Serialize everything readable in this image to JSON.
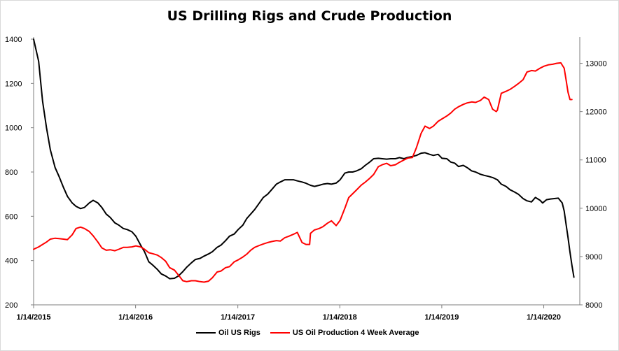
{
  "chart_data": {
    "type": "line",
    "title": "US Drilling Rigs and Crude Production",
    "x_tick_labels": [
      "1/14/2015",
      "1/14/2016",
      "1/14/2017",
      "1/14/2018",
      "1/14/2019",
      "1/14/2020"
    ],
    "x_range": [
      "2015-01-14",
      "2020-05-22"
    ],
    "y_left": {
      "range": [
        200,
        1400
      ],
      "ticks": [
        200,
        400,
        600,
        800,
        1000,
        1200,
        1400
      ]
    },
    "y_right": {
      "range": [
        8000,
        13500
      ],
      "ticks": [
        8000,
        9000,
        10000,
        11000,
        12000,
        13000
      ]
    },
    "grid": false,
    "legend_position": "bottom",
    "series": [
      {
        "name": "Oil US Rigs",
        "axis": "left",
        "color": "#000000",
        "points": [
          [
            "2015-01-14",
            1400
          ],
          [
            "2015-02-01",
            1300
          ],
          [
            "2015-02-15",
            1120
          ],
          [
            "2015-03-01",
            1000
          ],
          [
            "2015-03-15",
            900
          ],
          [
            "2015-04-01",
            820
          ],
          [
            "2015-04-15",
            780
          ],
          [
            "2015-05-01",
            730
          ],
          [
            "2015-05-15",
            690
          ],
          [
            "2015-06-01",
            660
          ],
          [
            "2015-06-15",
            645
          ],
          [
            "2015-07-01",
            635
          ],
          [
            "2015-07-15",
            640
          ],
          [
            "2015-08-01",
            660
          ],
          [
            "2015-08-15",
            672
          ],
          [
            "2015-09-01",
            660
          ],
          [
            "2015-09-15",
            640
          ],
          [
            "2015-10-01",
            610
          ],
          [
            "2015-10-15",
            595
          ],
          [
            "2015-11-01",
            570
          ],
          [
            "2015-11-15",
            560
          ],
          [
            "2015-12-01",
            545
          ],
          [
            "2015-12-15",
            540
          ],
          [
            "2016-01-01",
            530
          ],
          [
            "2016-01-15",
            510
          ],
          [
            "2016-02-01",
            470
          ],
          [
            "2016-02-15",
            440
          ],
          [
            "2016-03-01",
            395
          ],
          [
            "2016-03-15",
            380
          ],
          [
            "2016-04-01",
            360
          ],
          [
            "2016-04-15",
            340
          ],
          [
            "2016-05-01",
            330
          ],
          [
            "2016-05-15",
            318
          ],
          [
            "2016-06-01",
            320
          ],
          [
            "2016-06-15",
            330
          ],
          [
            "2016-07-01",
            350
          ],
          [
            "2016-07-15",
            370
          ],
          [
            "2016-08-01",
            390
          ],
          [
            "2016-08-15",
            405
          ],
          [
            "2016-09-01",
            410
          ],
          [
            "2016-09-15",
            420
          ],
          [
            "2016-10-01",
            430
          ],
          [
            "2016-10-15",
            440
          ],
          [
            "2016-11-01",
            460
          ],
          [
            "2016-11-15",
            470
          ],
          [
            "2016-12-01",
            490
          ],
          [
            "2016-12-15",
            510
          ],
          [
            "2017-01-01",
            520
          ],
          [
            "2017-01-15",
            540
          ],
          [
            "2017-02-01",
            560
          ],
          [
            "2017-02-15",
            590
          ],
          [
            "2017-03-01",
            610
          ],
          [
            "2017-03-15",
            630
          ],
          [
            "2017-04-01",
            660
          ],
          [
            "2017-04-15",
            685
          ],
          [
            "2017-05-01",
            700
          ],
          [
            "2017-05-15",
            720
          ],
          [
            "2017-06-01",
            745
          ],
          [
            "2017-06-15",
            755
          ],
          [
            "2017-07-01",
            765
          ],
          [
            "2017-07-15",
            765
          ],
          [
            "2017-08-01",
            765
          ],
          [
            "2017-08-15",
            760
          ],
          [
            "2017-09-01",
            755
          ],
          [
            "2017-09-15",
            749
          ],
          [
            "2017-10-01",
            740
          ],
          [
            "2017-10-15",
            735
          ],
          [
            "2017-11-01",
            740
          ],
          [
            "2017-11-15",
            745
          ],
          [
            "2017-12-01",
            748
          ],
          [
            "2017-12-15",
            745
          ],
          [
            "2018-01-01",
            750
          ],
          [
            "2018-01-15",
            765
          ],
          [
            "2018-02-01",
            795
          ],
          [
            "2018-02-15",
            800
          ],
          [
            "2018-03-01",
            800
          ],
          [
            "2018-03-15",
            805
          ],
          [
            "2018-04-01",
            815
          ],
          [
            "2018-04-15",
            830
          ],
          [
            "2018-05-01",
            845
          ],
          [
            "2018-05-15",
            860
          ],
          [
            "2018-06-01",
            862
          ],
          [
            "2018-06-15",
            860
          ],
          [
            "2018-07-01",
            858
          ],
          [
            "2018-07-15",
            860
          ],
          [
            "2018-08-01",
            860
          ],
          [
            "2018-08-15",
            865
          ],
          [
            "2018-09-01",
            860
          ],
          [
            "2018-09-15",
            866
          ],
          [
            "2018-10-01",
            870
          ],
          [
            "2018-10-15",
            875
          ],
          [
            "2018-11-01",
            885
          ],
          [
            "2018-11-15",
            887
          ],
          [
            "2018-12-01",
            880
          ],
          [
            "2018-12-15",
            875
          ],
          [
            "2019-01-01",
            880
          ],
          [
            "2019-01-15",
            862
          ],
          [
            "2019-02-01",
            860
          ],
          [
            "2019-02-15",
            845
          ],
          [
            "2019-03-01",
            840
          ],
          [
            "2019-03-15",
            825
          ],
          [
            "2019-04-01",
            830
          ],
          [
            "2019-04-15",
            820
          ],
          [
            "2019-05-01",
            805
          ],
          [
            "2019-05-15",
            800
          ],
          [
            "2019-06-01",
            790
          ],
          [
            "2019-06-15",
            785
          ],
          [
            "2019-07-01",
            780
          ],
          [
            "2019-07-15",
            775
          ],
          [
            "2019-08-01",
            765
          ],
          [
            "2019-08-15",
            745
          ],
          [
            "2019-09-01",
            735
          ],
          [
            "2019-09-15",
            720
          ],
          [
            "2019-10-01",
            710
          ],
          [
            "2019-10-15",
            700
          ],
          [
            "2019-11-01",
            680
          ],
          [
            "2019-11-15",
            670
          ],
          [
            "2019-12-01",
            665
          ],
          [
            "2019-12-15",
            685
          ],
          [
            "2020-01-01",
            672
          ],
          [
            "2020-01-10",
            660
          ],
          [
            "2020-01-24",
            675
          ],
          [
            "2020-02-07",
            678
          ],
          [
            "2020-02-21",
            680
          ],
          [
            "2020-03-06",
            682
          ],
          [
            "2020-03-20",
            660
          ],
          [
            "2020-03-27",
            624
          ],
          [
            "2020-04-03",
            562
          ],
          [
            "2020-04-10",
            504
          ],
          [
            "2020-04-17",
            438
          ],
          [
            "2020-04-24",
            378
          ],
          [
            "2020-05-01",
            325
          ]
        ]
      },
      {
        "name": "US Oil Production 4 Week Average",
        "axis": "right",
        "color": "#ff0000",
        "points": [
          [
            "2015-01-14",
            9150
          ],
          [
            "2015-02-01",
            9200
          ],
          [
            "2015-02-15",
            9250
          ],
          [
            "2015-03-01",
            9300
          ],
          [
            "2015-03-15",
            9360
          ],
          [
            "2015-04-01",
            9380
          ],
          [
            "2015-04-15",
            9370
          ],
          [
            "2015-05-01",
            9360
          ],
          [
            "2015-05-15",
            9350
          ],
          [
            "2015-06-01",
            9450
          ],
          [
            "2015-06-15",
            9580
          ],
          [
            "2015-07-01",
            9610
          ],
          [
            "2015-07-15",
            9580
          ],
          [
            "2015-08-01",
            9520
          ],
          [
            "2015-08-15",
            9430
          ],
          [
            "2015-09-01",
            9300
          ],
          [
            "2015-09-15",
            9180
          ],
          [
            "2015-10-01",
            9130
          ],
          [
            "2015-10-15",
            9140
          ],
          [
            "2015-11-01",
            9120
          ],
          [
            "2015-11-15",
            9150
          ],
          [
            "2015-12-01",
            9190
          ],
          [
            "2015-12-15",
            9190
          ],
          [
            "2016-01-01",
            9200
          ],
          [
            "2016-01-15",
            9220
          ],
          [
            "2016-02-01",
            9200
          ],
          [
            "2016-02-15",
            9150
          ],
          [
            "2016-03-01",
            9080
          ],
          [
            "2016-03-15",
            9060
          ],
          [
            "2016-04-01",
            9030
          ],
          [
            "2016-04-15",
            8980
          ],
          [
            "2016-05-01",
            8900
          ],
          [
            "2016-05-15",
            8770
          ],
          [
            "2016-06-01",
            8720
          ],
          [
            "2016-06-15",
            8620
          ],
          [
            "2016-07-01",
            8500
          ],
          [
            "2016-07-15",
            8480
          ],
          [
            "2016-08-01",
            8500
          ],
          [
            "2016-08-15",
            8500
          ],
          [
            "2016-09-01",
            8480
          ],
          [
            "2016-09-15",
            8470
          ],
          [
            "2016-10-01",
            8490
          ],
          [
            "2016-10-15",
            8560
          ],
          [
            "2016-11-01",
            8680
          ],
          [
            "2016-11-15",
            8700
          ],
          [
            "2016-12-01",
            8770
          ],
          [
            "2016-12-15",
            8790
          ],
          [
            "2017-01-01",
            8890
          ],
          [
            "2017-01-15",
            8930
          ],
          [
            "2017-02-01",
            8990
          ],
          [
            "2017-02-15",
            9050
          ],
          [
            "2017-03-01",
            9130
          ],
          [
            "2017-03-15",
            9190
          ],
          [
            "2017-04-01",
            9230
          ],
          [
            "2017-04-15",
            9260
          ],
          [
            "2017-05-01",
            9290
          ],
          [
            "2017-05-15",
            9310
          ],
          [
            "2017-06-01",
            9330
          ],
          [
            "2017-06-15",
            9320
          ],
          [
            "2017-07-01",
            9390
          ],
          [
            "2017-07-15",
            9420
          ],
          [
            "2017-08-01",
            9460
          ],
          [
            "2017-08-15",
            9500
          ],
          [
            "2017-09-01",
            9290
          ],
          [
            "2017-09-15",
            9250
          ],
          [
            "2017-09-28",
            9250
          ],
          [
            "2017-10-01",
            9480
          ],
          [
            "2017-10-15",
            9550
          ],
          [
            "2017-11-01",
            9580
          ],
          [
            "2017-11-15",
            9620
          ],
          [
            "2017-12-01",
            9690
          ],
          [
            "2017-12-15",
            9740
          ],
          [
            "2018-01-01",
            9640
          ],
          [
            "2018-01-15",
            9750
          ],
          [
            "2018-02-01",
            10000
          ],
          [
            "2018-02-15",
            10220
          ],
          [
            "2018-03-01",
            10300
          ],
          [
            "2018-03-15",
            10380
          ],
          [
            "2018-04-01",
            10480
          ],
          [
            "2018-04-15",
            10540
          ],
          [
            "2018-05-01",
            10620
          ],
          [
            "2018-05-15",
            10700
          ],
          [
            "2018-06-01",
            10860
          ],
          [
            "2018-06-15",
            10900
          ],
          [
            "2018-07-01",
            10930
          ],
          [
            "2018-07-15",
            10880
          ],
          [
            "2018-08-01",
            10900
          ],
          [
            "2018-08-15",
            10950
          ],
          [
            "2018-09-01",
            11000
          ],
          [
            "2018-09-15",
            11040
          ],
          [
            "2018-10-01",
            11050
          ],
          [
            "2018-10-15",
            11250
          ],
          [
            "2018-11-01",
            11550
          ],
          [
            "2018-11-15",
            11700
          ],
          [
            "2018-12-01",
            11650
          ],
          [
            "2018-12-15",
            11700
          ],
          [
            "2019-01-01",
            11800
          ],
          [
            "2019-01-15",
            11850
          ],
          [
            "2019-02-01",
            11910
          ],
          [
            "2019-02-15",
            11970
          ],
          [
            "2019-03-01",
            12050
          ],
          [
            "2019-03-15",
            12100
          ],
          [
            "2019-04-01",
            12150
          ],
          [
            "2019-04-15",
            12180
          ],
          [
            "2019-05-01",
            12200
          ],
          [
            "2019-05-15",
            12190
          ],
          [
            "2019-06-01",
            12230
          ],
          [
            "2019-06-15",
            12300
          ],
          [
            "2019-07-01",
            12250
          ],
          [
            "2019-07-15",
            12050
          ],
          [
            "2019-07-28",
            12000
          ],
          [
            "2019-08-01",
            12030
          ],
          [
            "2019-08-15",
            12380
          ],
          [
            "2019-09-01",
            12420
          ],
          [
            "2019-09-15",
            12460
          ],
          [
            "2019-10-01",
            12520
          ],
          [
            "2019-10-15",
            12580
          ],
          [
            "2019-11-01",
            12660
          ],
          [
            "2019-11-15",
            12820
          ],
          [
            "2019-12-01",
            12850
          ],
          [
            "2019-12-15",
            12840
          ],
          [
            "2020-01-01",
            12900
          ],
          [
            "2020-01-15",
            12940
          ],
          [
            "2020-02-01",
            12970
          ],
          [
            "2020-02-15",
            12980
          ],
          [
            "2020-03-01",
            13000
          ],
          [
            "2020-03-15",
            13010
          ],
          [
            "2020-03-27",
            12900
          ],
          [
            "2020-04-03",
            12650
          ],
          [
            "2020-04-10",
            12400
          ],
          [
            "2020-04-17",
            12250
          ],
          [
            "2020-04-24",
            12250
          ]
        ]
      }
    ]
  }
}
